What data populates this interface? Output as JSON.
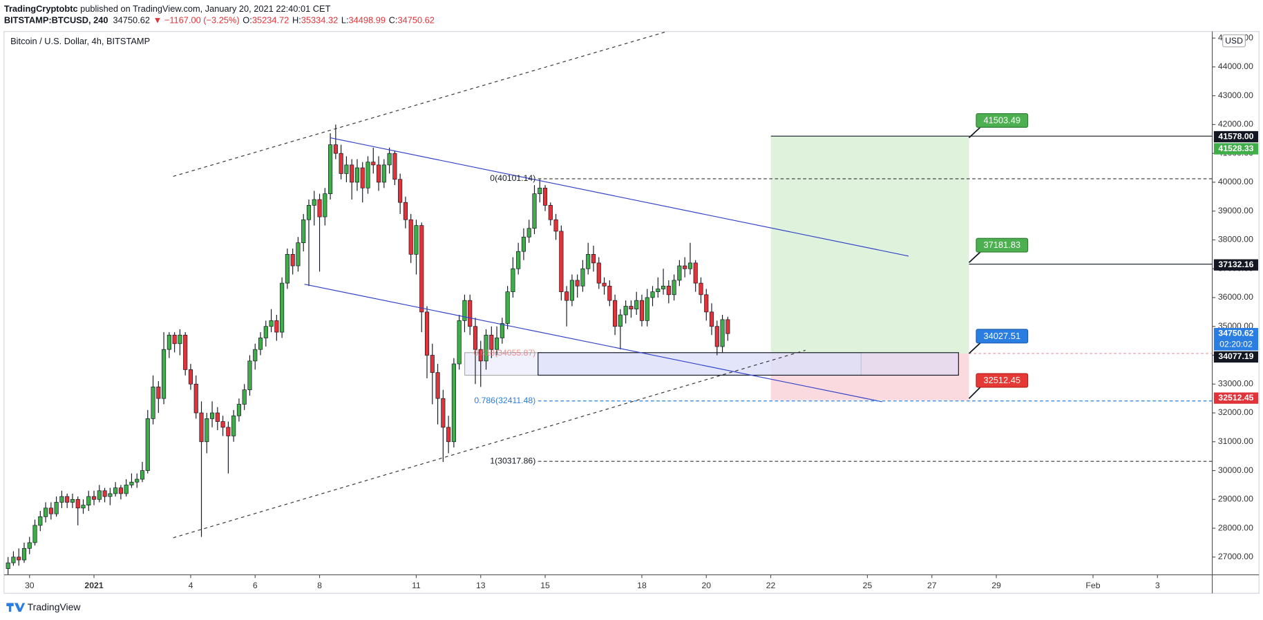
{
  "header": {
    "author": "TradingCryptobtc",
    "published": "published on TradingView.com, January 20, 2021 22:40:01 CET",
    "symbol": "BITSTAMP:BTCUSD, 240",
    "last": "34750.62",
    "change": "▼ −1167.00 (−3.25%)",
    "ohlc": [
      {
        "key": "O:",
        "value": "35234.72"
      },
      {
        "key": "H:",
        "value": "35334.32"
      },
      {
        "key": "L:",
        "value": "34498.99"
      },
      {
        "key": "C:",
        "value": "34750.62"
      }
    ]
  },
  "chart_data": {
    "type": "candlestick",
    "title": "Bitcoin / U.S. Dollar, 4h, BITSTAMP",
    "up_color": "#3fae49",
    "down_color": "#e0343a",
    "wick_color": "#131722",
    "xlim": [
      -0.75,
      224.2
    ],
    "ylim": [
      26384,
      45172
    ],
    "xticks": [
      {
        "value": 4,
        "label": "30"
      },
      {
        "value": 16,
        "label": "2021"
      },
      {
        "value": 34,
        "label": "4"
      },
      {
        "value": 46,
        "label": "6"
      },
      {
        "value": 58,
        "label": "8"
      },
      {
        "value": 76,
        "label": "11"
      },
      {
        "value": 88,
        "label": "13"
      },
      {
        "value": 100,
        "label": "15"
      },
      {
        "value": 118,
        "label": "18"
      },
      {
        "value": 130,
        "label": "20"
      },
      {
        "value": 142,
        "label": "22"
      },
      {
        "value": 160,
        "label": "25"
      },
      {
        "value": 172,
        "label": "27"
      },
      {
        "value": 184,
        "label": "29"
      },
      {
        "value": 202,
        "label": "Feb"
      },
      {
        "value": 214,
        "label": "3"
      }
    ],
    "yticks": [
      {
        "value": 27000,
        "label": "27000.00"
      },
      {
        "value": 28000,
        "label": "28000.00"
      },
      {
        "value": 29000,
        "label": "29000.00"
      },
      {
        "value": 30000,
        "label": "30000.00"
      },
      {
        "value": 31000,
        "label": "31000.00"
      },
      {
        "value": 32000,
        "label": "32000.00"
      },
      {
        "value": 33000,
        "label": "33000.00"
      },
      {
        "value": 34000,
        "label": "34000.00"
      },
      {
        "value": 35000,
        "label": "35000.00"
      },
      {
        "value": 36000,
        "label": "36000.00"
      },
      {
        "value": 37000,
        "label": "37000.00"
      },
      {
        "value": 38000,
        "label": "38000.00"
      },
      {
        "value": 39000,
        "label": "39000.00"
      },
      {
        "value": 40000,
        "label": "40000.00"
      },
      {
        "value": 41000,
        "label": "41000.00"
      },
      {
        "value": 42000,
        "label": "42000.00"
      },
      {
        "value": 43000,
        "label": "43000.00"
      },
      {
        "value": 44000,
        "label": "44000.00"
      },
      {
        "value": 45000,
        "label": "45000.00"
      }
    ],
    "candles": [
      [
        26600,
        27000,
        26400,
        26800
      ],
      [
        26800,
        27200,
        26700,
        27000
      ],
      [
        27000,
        27300,
        26700,
        26900
      ],
      [
        26900,
        27500,
        26800,
        27300
      ],
      [
        27300,
        27700,
        27100,
        27500
      ],
      [
        27500,
        28300,
        27400,
        28100
      ],
      [
        28100,
        28600,
        27900,
        28400
      ],
      [
        28400,
        28900,
        28200,
        28700
      ],
      [
        28700,
        28900,
        28300,
        28500
      ],
      [
        28500,
        29100,
        28400,
        28900
      ],
      [
        28900,
        29300,
        28700,
        29100
      ],
      [
        29100,
        29200,
        28700,
        28900
      ],
      [
        28900,
        29200,
        28700,
        29000
      ],
      [
        29000,
        29100,
        28100,
        28700
      ],
      [
        28700,
        29000,
        28500,
        28800
      ],
      [
        28800,
        29300,
        28600,
        29100
      ],
      [
        29100,
        29300,
        28800,
        29000
      ],
      [
        29000,
        29500,
        28900,
        29300
      ],
      [
        29300,
        29400,
        28900,
        29100
      ],
      [
        29100,
        29400,
        28800,
        29200
      ],
      [
        29200,
        29600,
        29100,
        29400
      ],
      [
        29400,
        29500,
        29000,
        29200
      ],
      [
        29200,
        29700,
        29100,
        29500
      ],
      [
        29500,
        29900,
        29400,
        29600
      ],
      [
        29600,
        29900,
        29400,
        29700
      ],
      [
        29700,
        30300,
        29600,
        30000
      ],
      [
        30000,
        32100,
        29900,
        31800
      ],
      [
        31800,
        33300,
        31600,
        32900
      ],
      [
        32900,
        33100,
        32000,
        32500
      ],
      [
        32500,
        34800,
        32300,
        34200
      ],
      [
        34200,
        34800,
        33900,
        34700
      ],
      [
        34700,
        34800,
        34100,
        34400
      ],
      [
        34400,
        34900,
        34000,
        34700
      ],
      [
        34700,
        34800,
        33300,
        33500
      ],
      [
        33500,
        33700,
        32800,
        33000
      ],
      [
        33000,
        33300,
        31800,
        32000
      ],
      [
        32000,
        32400,
        27700,
        31000
      ],
      [
        31000,
        32000,
        30600,
        31800
      ],
      [
        31800,
        32400,
        31500,
        32000
      ],
      [
        32000,
        32200,
        31400,
        31700
      ],
      [
        31700,
        31900,
        31200,
        31500
      ],
      [
        31500,
        31700,
        29900,
        31200
      ],
      [
        31200,
        32100,
        31000,
        31900
      ],
      [
        31900,
        32500,
        31700,
        32300
      ],
      [
        32300,
        33000,
        32100,
        32800
      ],
      [
        32800,
        34000,
        32600,
        33800
      ],
      [
        33800,
        34400,
        33500,
        34200
      ],
      [
        34200,
        34800,
        34000,
        34600
      ],
      [
        34600,
        35200,
        34300,
        35000
      ],
      [
        35000,
        35600,
        34800,
        35200
      ],
      [
        35200,
        35400,
        34500,
        34800
      ],
      [
        34800,
        36700,
        34600,
        36500
      ],
      [
        36500,
        37700,
        36300,
        37500
      ],
      [
        37500,
        37700,
        36800,
        37100
      ],
      [
        37100,
        38100,
        36900,
        37900
      ],
      [
        37900,
        38900,
        37600,
        38700
      ],
      [
        38700,
        39400,
        36400,
        39200
      ],
      [
        39200,
        39700,
        38500,
        39400
      ],
      [
        39400,
        39600,
        36900,
        38800
      ],
      [
        38800,
        39800,
        38500,
        39600
      ],
      [
        39600,
        41700,
        39400,
        41300
      ],
      [
        41300,
        42000,
        40800,
        41000
      ],
      [
        41000,
        41300,
        40100,
        40300
      ],
      [
        40300,
        40900,
        40000,
        40600
      ],
      [
        40600,
        40800,
        39400,
        40000
      ],
      [
        40000,
        40800,
        39700,
        40500
      ],
      [
        40500,
        40700,
        39300,
        39800
      ],
      [
        39800,
        40900,
        39600,
        40700
      ],
      [
        40700,
        41200,
        40300,
        40600
      ],
      [
        40600,
        40900,
        39700,
        40000
      ],
      [
        40000,
        40800,
        39800,
        40600
      ],
      [
        40600,
        41200,
        40300,
        41000
      ],
      [
        41000,
        41100,
        39900,
        40100
      ],
      [
        40100,
        40300,
        38900,
        39300
      ],
      [
        39300,
        39500,
        38400,
        38700
      ],
      [
        38700,
        38900,
        37200,
        37500
      ],
      [
        37500,
        38700,
        36800,
        38500
      ],
      [
        38500,
        38600,
        34800,
        35500
      ],
      [
        35500,
        35700,
        33200,
        34000
      ],
      [
        34000,
        34400,
        32300,
        33400
      ],
      [
        33400,
        33700,
        31600,
        32500
      ],
      [
        32500,
        32800,
        30300,
        31500
      ],
      [
        31500,
        31900,
        30600,
        31000
      ],
      [
        31000,
        33900,
        30800,
        33700
      ],
      [
        33700,
        35400,
        33500,
        35200
      ],
      [
        35200,
        36100,
        34800,
        35900
      ],
      [
        35900,
        36100,
        34700,
        35000
      ],
      [
        35000,
        35300,
        33000,
        34200
      ],
      [
        34200,
        34500,
        32900,
        33800
      ],
      [
        33800,
        34900,
        33500,
        34700
      ],
      [
        34700,
        35000,
        33900,
        34200
      ],
      [
        34200,
        35000,
        34000,
        34600
      ],
      [
        34600,
        35300,
        34400,
        35100
      ],
      [
        35100,
        36400,
        34900,
        36200
      ],
      [
        36200,
        37400,
        36000,
        37000
      ],
      [
        37000,
        37900,
        36800,
        37600
      ],
      [
        37600,
        38400,
        37300,
        38100
      ],
      [
        38100,
        38700,
        37900,
        38400
      ],
      [
        38400,
        39900,
        38200,
        39600
      ],
      [
        39600,
        40100,
        39300,
        39800
      ],
      [
        39800,
        39900,
        39000,
        39200
      ],
      [
        39200,
        39300,
        38500,
        38700
      ],
      [
        38700,
        38900,
        38000,
        38300
      ],
      [
        38300,
        38500,
        35900,
        36200
      ],
      [
        36200,
        36400,
        35000,
        35900
      ],
      [
        35900,
        36800,
        35700,
        36600
      ],
      [
        36600,
        36800,
        36000,
        36400
      ],
      [
        36400,
        37300,
        36200,
        37000
      ],
      [
        37000,
        37900,
        36800,
        37500
      ],
      [
        37500,
        37800,
        36900,
        37200
      ],
      [
        37200,
        37400,
        36300,
        36500
      ],
      [
        36500,
        36700,
        36100,
        36400
      ],
      [
        36400,
        36600,
        35700,
        35900
      ],
      [
        35900,
        36100,
        34700,
        35000
      ],
      [
        35000,
        35600,
        34200,
        35400
      ],
      [
        35400,
        35900,
        35100,
        35700
      ],
      [
        35700,
        35900,
        35300,
        35600
      ],
      [
        35600,
        36200,
        35400,
        35900
      ],
      [
        35900,
        36100,
        35000,
        35200
      ],
      [
        35200,
        36300,
        35000,
        36000
      ],
      [
        36000,
        36400,
        35700,
        36200
      ],
      [
        36200,
        36700,
        36000,
        36300
      ],
      [
        36300,
        37000,
        36100,
        36400
      ],
      [
        36400,
        36600,
        35800,
        36100
      ],
      [
        36100,
        36800,
        35900,
        36600
      ],
      [
        36600,
        37300,
        36400,
        37100
      ],
      [
        37100,
        37400,
        36700,
        37000
      ],
      [
        37000,
        37900,
        36800,
        37200
      ],
      [
        37200,
        37300,
        36200,
        36500
      ],
      [
        36500,
        36700,
        35800,
        36100
      ],
      [
        36100,
        36300,
        35200,
        35500
      ],
      [
        35500,
        35800,
        34700,
        35000
      ],
      [
        35000,
        35200,
        34000,
        34300
      ],
      [
        34300,
        35400,
        34100,
        35234.72
      ],
      [
        35234.72,
        35334.32,
        34498.99,
        34750.62
      ]
    ],
    "price_tags": [
      {
        "value": 41578.0,
        "label": "41578.00",
        "color": "#131722"
      },
      {
        "value": 41528.33,
        "label": "41528.33",
        "color": "#3fae49"
      },
      {
        "value": 37132.16,
        "label": "37132.16",
        "color": "#131722"
      },
      {
        "value": 34750.62,
        "label": "34750.62",
        "color": "#2a7de1",
        "countdown": "02:20:02"
      },
      {
        "value": 34077.19,
        "label": "34077.19",
        "color": "#131722"
      },
      {
        "value": 32512.45,
        "label": "32512.45",
        "color": "#e0343a"
      }
    ],
    "currency": "USD"
  },
  "drawings": {
    "targets": [
      "41503.49",
      "37181.83"
    ],
    "entry": "34027.51",
    "stop": "32512.45",
    "fib": [
      "0(40101.14)",
      "0.618(34055.87)",
      "0.786(32411.48)",
      "1(30317.86)"
    ]
  },
  "footer": {
    "brand": "TradingView"
  }
}
